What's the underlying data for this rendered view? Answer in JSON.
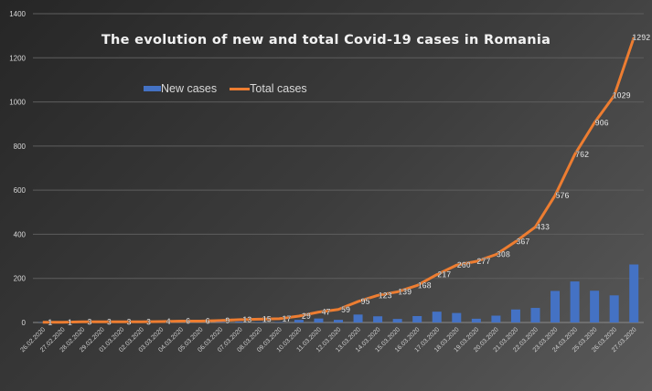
{
  "chart_data": {
    "type": "bar+line",
    "title": "The evolution of new and total Covid-19 cases in Romania",
    "xlabel": "",
    "ylabel": "",
    "ylim": [
      0,
      1400
    ],
    "yticks": [
      0,
      200,
      400,
      600,
      800,
      1000,
      1200,
      1400
    ],
    "grid": true,
    "legend": "top-left",
    "categories": [
      "26.02.2020",
      "27.02.2020",
      "28.02.2020",
      "29.02.2020",
      "01.03.2020",
      "02.03.2020",
      "03.03.2020",
      "04.03.2020",
      "05.03.2020",
      "06.03.2020",
      "07.03.2020",
      "08.03.2020",
      "09.03.2020",
      "10.03.2020",
      "11.03.2020",
      "12.03.2020",
      "13.03.2020",
      "14.03.2020",
      "15.03.2020",
      "16.03.2020",
      "17.03.2020",
      "18.03.2020",
      "19.03.2020",
      "20.03.2020",
      "21.03.2020",
      "22.03.2020",
      "23.03.2020",
      "24.03.2020",
      "25.03.2020",
      "26.03.2020",
      "27.03.2020"
    ],
    "series": [
      {
        "name": "New cases",
        "type": "bar",
        "color": "#4472c4",
        "values": [
          1,
          0,
          2,
          0,
          0,
          0,
          1,
          2,
          0,
          3,
          4,
          2,
          2,
          12,
          18,
          12,
          36,
          28,
          16,
          29,
          49,
          43,
          17,
          31,
          59,
          66,
          143,
          186,
          144,
          123,
          263
        ]
      },
      {
        "name": "Total cases",
        "type": "line",
        "color": "#ed7d31",
        "data_labels": true,
        "values": [
          1,
          1,
          3,
          3,
          3,
          3,
          4,
          6,
          6,
          9,
          13,
          15,
          17,
          29,
          47,
          59,
          95,
          123,
          139,
          168,
          217,
          260,
          277,
          308,
          367,
          433,
          576,
          762,
          906,
          1029,
          1292
        ]
      }
    ]
  }
}
